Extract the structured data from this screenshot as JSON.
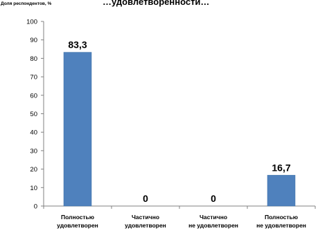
{
  "chart_data": {
    "type": "bar",
    "ylabel": "Доля респондентов, %",
    "title": "…удовлетворенности…",
    "categories": [
      [
        "Полностью",
        "удовлетворен"
      ],
      [
        "Частично",
        "удовлетворен"
      ],
      [
        "Частично",
        "не удовлетворен"
      ],
      [
        "Полностью",
        "не удовлетворен"
      ]
    ],
    "values": [
      83.3,
      0,
      0,
      16.7
    ],
    "value_labels": [
      "83,3",
      "0",
      "0",
      "16,7"
    ],
    "ylim": [
      0,
      100
    ],
    "yticks": [
      0,
      10,
      20,
      30,
      40,
      50,
      60,
      70,
      80,
      90,
      100
    ],
    "grid": false,
    "legend": "none",
    "colors": {
      "bar": "#4F81BD",
      "bar_edge": "#3A6EA5",
      "axis": "#808080",
      "text": "#000000"
    }
  }
}
